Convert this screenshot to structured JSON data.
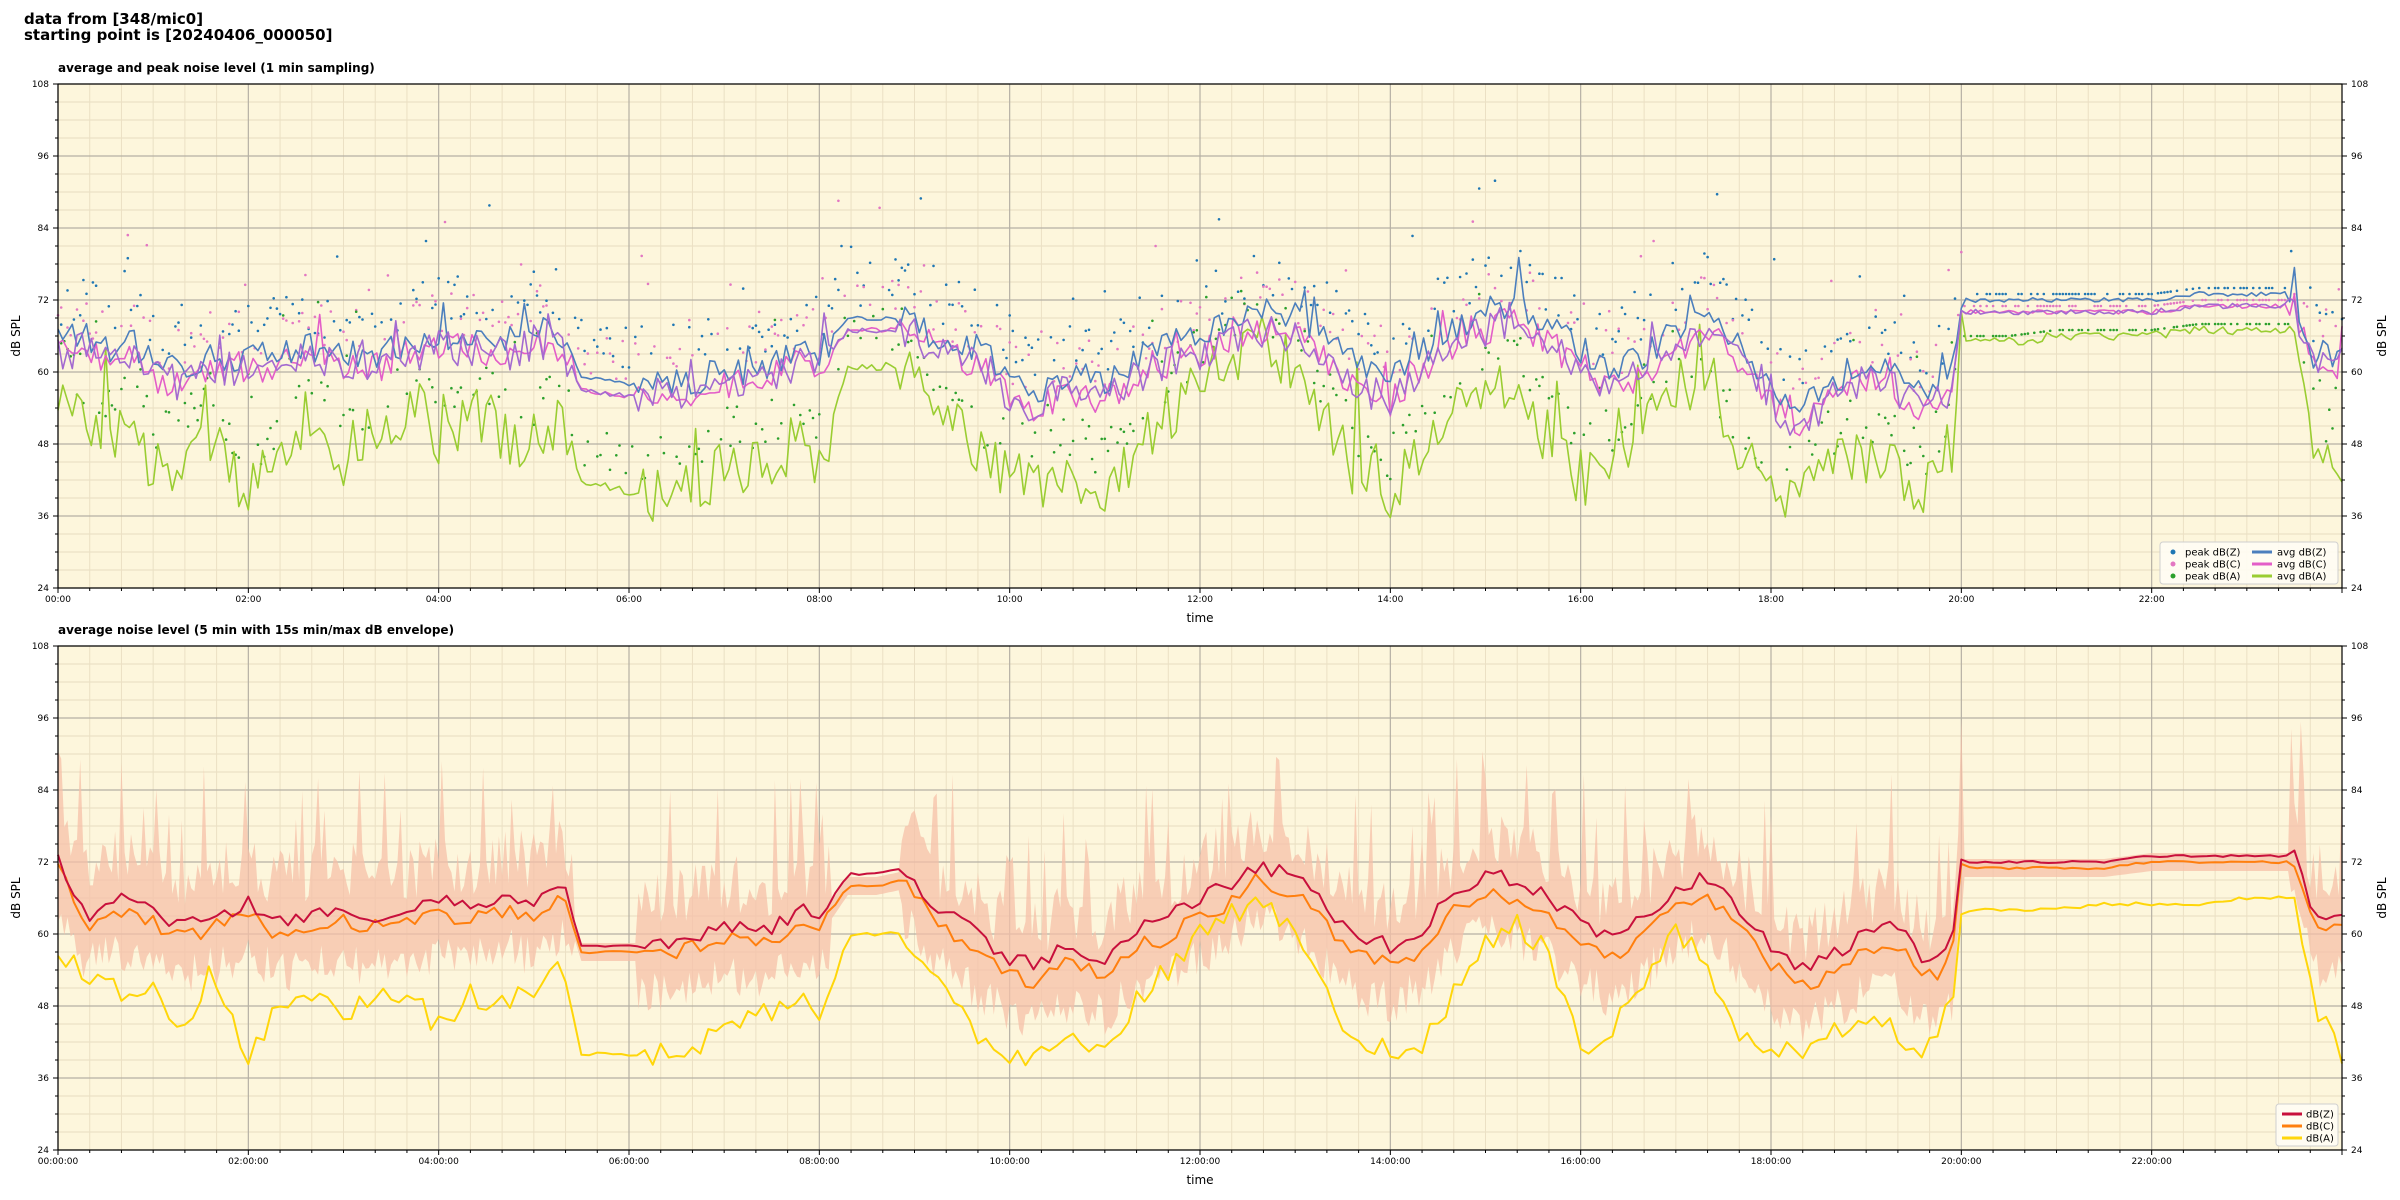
{
  "header": {
    "line1": "data from [348/mic0]",
    "line2": "starting point is [20240406_000050]"
  },
  "colors": {
    "background": "#fdf6dc",
    "peak_z": "#1f77b4",
    "peak_c": "#e377c2",
    "peak_a": "#2ca02c",
    "avg_z": "#4c7fbd",
    "avg_c": "#e35ec8",
    "avg_a": "#9acd32",
    "avg_purple": "#a36ad0",
    "dbz": "#c8103c",
    "dbc": "#ff7f0e",
    "dba": "#ffd60a",
    "envelope": "#f6c0a8"
  },
  "chart_data": [
    {
      "type": "line",
      "title": "average and peak noise level (1 min sampling)",
      "xlabel": "time",
      "ylabel": "dB SPL",
      "ylim": [
        24,
        108
      ],
      "yticks": [
        "24",
        "36",
        "48",
        "60",
        "72",
        "84",
        "96",
        "108"
      ],
      "xlim_hours": [
        0,
        24
      ],
      "xticks": [
        "00:00",
        "02:00",
        "04:00",
        "06:00",
        "08:00",
        "10:00",
        "12:00",
        "14:00",
        "16:00",
        "18:00",
        "20:00",
        "22:00"
      ],
      "grid": true,
      "legend_position": "lower-right",
      "legend": [
        "peak dB(Z)",
        "peak dB(C)",
        "peak dB(A)",
        "avg dB(Z)",
        "avg dB(C)",
        "avg dB(A)"
      ],
      "series": [
        {
          "name": "avg dB(Z)",
          "x_hours": [
            0,
            0.3,
            0.5,
            0.8,
            1.0,
            1.3,
            1.6,
            2.0,
            2.3,
            2.6,
            3.0,
            3.4,
            3.8,
            4.0,
            4.3,
            4.7,
            5.0,
            5.3,
            5.5,
            6.0,
            6.5,
            7.0,
            7.5,
            7.8,
            8.0,
            8.3,
            8.6,
            8.9,
            9.2,
            9.5,
            9.8,
            10.0,
            10.3,
            10.6,
            11.0,
            11.3,
            11.6,
            12.0,
            12.3,
            12.6,
            13.0,
            13.3,
            13.6,
            14.0,
            14.3,
            14.6,
            15.0,
            15.3,
            15.6,
            16.0,
            16.3,
            16.6,
            17.0,
            17.3,
            17.6,
            18.0,
            18.3,
            18.6,
            19.0,
            19.3,
            19.6,
            19.9,
            20.0,
            20.5,
            21.0,
            21.5,
            22.0,
            22.5,
            23.0,
            23.3,
            23.5,
            23.7,
            24.0
          ],
          "values": [
            65,
            66,
            64,
            65,
            61,
            60,
            63,
            62,
            63,
            64,
            63,
            63,
            65,
            66,
            66,
            65,
            67,
            66,
            59,
            58,
            58,
            60,
            61,
            64,
            63,
            69,
            69,
            69,
            66,
            65,
            63,
            59,
            57,
            60,
            58,
            62,
            64,
            66,
            68,
            70,
            69,
            66,
            62,
            59,
            63,
            67,
            70,
            72,
            68,
            64,
            60,
            62,
            66,
            70,
            66,
            58,
            54,
            58,
            62,
            60,
            56,
            60,
            72,
            72,
            72,
            72,
            72,
            73,
            73,
            73,
            73,
            63,
            63
          ]
        },
        {
          "name": "avg dB(C)",
          "x_hours": [
            0,
            0.3,
            0.5,
            0.8,
            1.0,
            1.3,
            1.6,
            2.0,
            2.3,
            2.6,
            3.0,
            3.4,
            3.8,
            4.0,
            4.3,
            4.7,
            5.0,
            5.3,
            5.5,
            6.0,
            6.5,
            7.0,
            7.5,
            7.8,
            8.0,
            8.3,
            8.6,
            8.9,
            9.2,
            9.5,
            9.8,
            10.0,
            10.3,
            10.6,
            11.0,
            11.3,
            11.6,
            12.0,
            12.3,
            12.6,
            13.0,
            13.3,
            13.6,
            14.0,
            14.3,
            14.6,
            15.0,
            15.3,
            15.6,
            16.0,
            16.3,
            16.6,
            17.0,
            17.3,
            17.6,
            18.0,
            18.3,
            18.6,
            19.0,
            19.3,
            19.6,
            19.9,
            20.0,
            20.5,
            21.0,
            21.5,
            22.0,
            22.5,
            23.0,
            23.3,
            23.5,
            23.7,
            24.0
          ],
          "values": [
            63,
            64,
            62,
            63,
            59,
            58,
            61,
            60,
            61,
            62,
            61,
            61,
            63,
            64,
            64,
            63,
            65,
            64,
            57,
            56,
            56,
            58,
            59,
            62,
            61,
            67,
            67,
            67,
            64,
            62,
            60,
            56,
            54,
            57,
            55,
            59,
            61,
            63,
            65,
            67,
            66,
            62,
            58,
            55,
            60,
            64,
            67,
            69,
            65,
            61,
            57,
            59,
            63,
            67,
            63,
            55,
            51,
            55,
            59,
            57,
            53,
            57,
            70,
            70,
            70,
            70,
            70,
            71,
            71,
            71,
            71,
            61,
            61
          ]
        },
        {
          "name": "avg dB(A)",
          "x_hours": [
            0,
            0.3,
            0.5,
            0.8,
            1.0,
            1.3,
            1.6,
            2.0,
            2.3,
            2.6,
            3.0,
            3.4,
            3.8,
            4.0,
            4.3,
            4.7,
            5.0,
            5.3,
            5.5,
            6.0,
            6.5,
            7.0,
            7.5,
            7.8,
            8.0,
            8.3,
            8.6,
            8.9,
            9.2,
            9.5,
            9.8,
            10.0,
            10.3,
            10.6,
            11.0,
            11.3,
            11.6,
            12.0,
            12.3,
            12.6,
            13.0,
            13.3,
            13.6,
            14.0,
            14.3,
            14.6,
            15.0,
            15.3,
            15.6,
            16.0,
            16.3,
            16.6,
            17.0,
            17.3,
            17.6,
            18.0,
            18.3,
            18.6,
            19.0,
            19.3,
            19.6,
            19.9,
            20.0,
            20.5,
            21.0,
            21.5,
            22.0,
            22.5,
            23.0,
            23.3,
            23.5,
            23.7,
            24.0
          ],
          "values": [
            58,
            52,
            48,
            55,
            43,
            46,
            50,
            40,
            44,
            52,
            46,
            50,
            55,
            44,
            55,
            50,
            48,
            52,
            42,
            40,
            40,
            44,
            46,
            48,
            44,
            61,
            61,
            61,
            54,
            50,
            44,
            42,
            40,
            44,
            40,
            46,
            52,
            58,
            62,
            66,
            60,
            52,
            44,
            40,
            46,
            52,
            56,
            60,
            50,
            42,
            44,
            50,
            58,
            56,
            46,
            40,
            40,
            44,
            46,
            44,
            40,
            48,
            65,
            65,
            66,
            66,
            66,
            67,
            67,
            67,
            67,
            48,
            44
          ]
        }
      ]
    },
    {
      "type": "line",
      "title": "average noise level (5 min with 15s min/max dB envelope)",
      "xlabel": "time",
      "ylabel": "dB SPL",
      "ylim": [
        24,
        108
      ],
      "yticks": [
        "24",
        "36",
        "48",
        "60",
        "72",
        "84",
        "96",
        "108"
      ],
      "xlim_hours": [
        0,
        24
      ],
      "xticks": [
        "00:00:00",
        "02:00:00",
        "04:00:00",
        "06:00:00",
        "08:00:00",
        "10:00:00",
        "12:00:00",
        "14:00:00",
        "16:00:00",
        "18:00:00",
        "20:00:00",
        "22:00:00"
      ],
      "grid": true,
      "legend_position": "lower-right",
      "legend": [
        "dB(Z)",
        "dB(C)",
        "dB(A)"
      ],
      "series": [
        {
          "name": "dB(Z)",
          "x_hours": [
            0,
            0.3,
            0.6,
            1.0,
            1.3,
            1.6,
            2.0,
            2.3,
            2.6,
            3.0,
            3.4,
            3.8,
            4.0,
            4.3,
            4.7,
            5.0,
            5.3,
            5.5,
            6.0,
            6.5,
            7.0,
            7.5,
            7.8,
            8.0,
            8.3,
            8.6,
            8.9,
            9.2,
            9.5,
            9.8,
            10.0,
            10.3,
            10.6,
            11.0,
            11.3,
            11.6,
            12.0,
            12.3,
            12.6,
            13.0,
            13.3,
            13.6,
            14.0,
            14.3,
            14.6,
            15.0,
            15.3,
            15.6,
            16.0,
            16.3,
            16.6,
            17.0,
            17.3,
            17.6,
            18.0,
            18.3,
            18.6,
            19.0,
            19.3,
            19.6,
            19.9,
            20.0,
            20.5,
            21.0,
            21.5,
            22.0,
            22.5,
            23.0,
            23.3,
            23.5,
            23.7,
            24.0
          ],
          "values": [
            73,
            63,
            66,
            64,
            61,
            63,
            65,
            62,
            63,
            64,
            63,
            64,
            66,
            64,
            66,
            65,
            69,
            58,
            58,
            58,
            61,
            61,
            64,
            63,
            70,
            70,
            71,
            65,
            62,
            58,
            56,
            55,
            58,
            56,
            61,
            62,
            66,
            68,
            71,
            70,
            65,
            60,
            58,
            60,
            66,
            70,
            69,
            67,
            62,
            59,
            62,
            67,
            70,
            65,
            58,
            54,
            56,
            60,
            62,
            55,
            58,
            72,
            72,
            72,
            72,
            73,
            73,
            73,
            73,
            73,
            63,
            63
          ]
        },
        {
          "name": "dB(C)",
          "x_hours": [
            0,
            0.3,
            0.6,
            1.0,
            1.3,
            1.6,
            2.0,
            2.3,
            2.6,
            3.0,
            3.4,
            3.8,
            4.0,
            4.3,
            4.7,
            5.0,
            5.3,
            5.5,
            6.0,
            6.5,
            7.0,
            7.5,
            7.8,
            8.0,
            8.3,
            8.6,
            8.9,
            9.2,
            9.5,
            9.8,
            10.0,
            10.3,
            10.6,
            11.0,
            11.3,
            11.6,
            12.0,
            12.3,
            12.6,
            13.0,
            13.3,
            13.6,
            14.0,
            14.3,
            14.6,
            15.0,
            15.3,
            15.6,
            16.0,
            16.3,
            16.6,
            17.0,
            17.3,
            17.6,
            18.0,
            18.3,
            18.6,
            19.0,
            19.3,
            19.6,
            19.9,
            20.0,
            20.5,
            21.0,
            21.5,
            22.0,
            22.5,
            23.0,
            23.3,
            23.5,
            23.7,
            24.0
          ],
          "values": [
            71,
            61,
            64,
            62,
            59,
            61,
            63,
            60,
            61,
            62,
            61,
            62,
            64,
            62,
            64,
            63,
            67,
            57,
            57,
            57,
            59,
            59,
            62,
            61,
            68,
            68,
            69,
            62,
            59,
            55,
            53,
            52,
            55,
            53,
            58,
            59,
            63,
            65,
            69,
            67,
            62,
            57,
            55,
            57,
            63,
            67,
            66,
            64,
            59,
            56,
            59,
            64,
            67,
            62,
            55,
            51,
            53,
            57,
            59,
            52,
            55,
            71,
            71,
            71,
            71,
            72,
            72,
            72,
            72,
            72,
            61,
            61
          ]
        },
        {
          "name": "dB(A)",
          "x_hours": [
            0,
            0.3,
            0.6,
            1.0,
            1.3,
            1.6,
            2.0,
            2.3,
            2.6,
            3.0,
            3.4,
            3.8,
            4.0,
            4.3,
            4.7,
            5.0,
            5.3,
            5.5,
            6.0,
            6.5,
            7.0,
            7.5,
            7.8,
            8.0,
            8.3,
            8.6,
            8.9,
            9.2,
            9.5,
            9.8,
            10.0,
            10.3,
            10.6,
            11.0,
            11.3,
            11.6,
            12.0,
            12.3,
            12.6,
            13.0,
            13.3,
            13.6,
            14.0,
            14.3,
            14.6,
            15.0,
            15.3,
            15.6,
            16.0,
            16.3,
            16.6,
            17.0,
            17.3,
            17.6,
            18.0,
            18.3,
            18.6,
            19.0,
            19.3,
            19.6,
            19.9,
            20.0,
            20.5,
            21.0,
            21.5,
            22.0,
            22.5,
            23.0,
            23.3,
            23.5,
            23.7,
            24.0
          ],
          "values": [
            58,
            52,
            51,
            50,
            43,
            54,
            40,
            47,
            50,
            46,
            50,
            51,
            42,
            50,
            48,
            51,
            55,
            40,
            40,
            40,
            44,
            47,
            50,
            44,
            60,
            60,
            60,
            52,
            46,
            40,
            40,
            39,
            43,
            40,
            48,
            53,
            60,
            63,
            66,
            60,
            50,
            43,
            40,
            40,
            48,
            58,
            62,
            58,
            41,
            43,
            50,
            60,
            56,
            45,
            40,
            40,
            44,
            46,
            44,
            40,
            48,
            64,
            64,
            64,
            65,
            65,
            65,
            66,
            66,
            66,
            48,
            40
          ]
        }
      ]
    }
  ]
}
